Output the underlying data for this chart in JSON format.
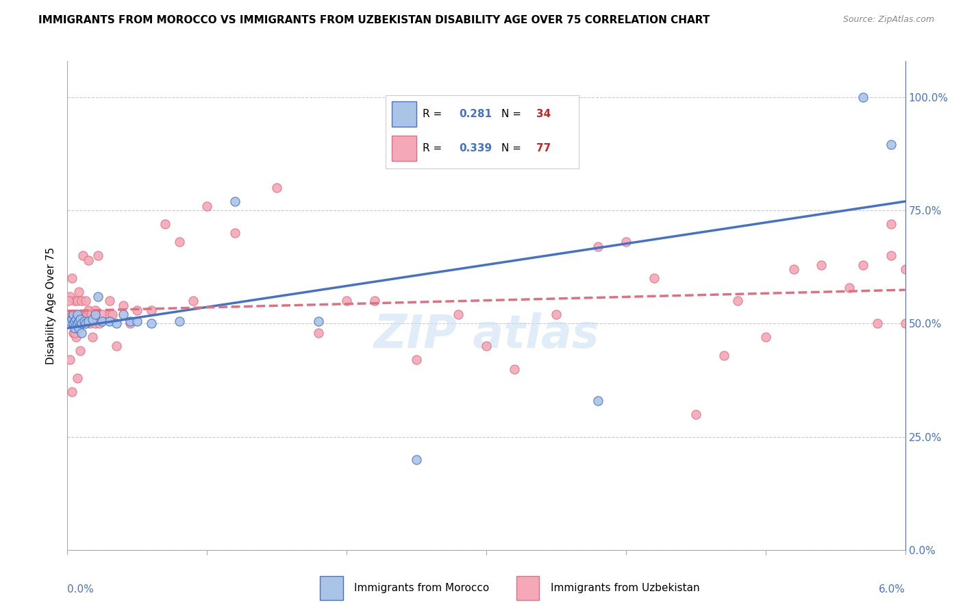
{
  "title": "IMMIGRANTS FROM MOROCCO VS IMMIGRANTS FROM UZBEKISTAN DISABILITY AGE OVER 75 CORRELATION CHART",
  "source": "Source: ZipAtlas.com",
  "ylabel": "Disability Age Over 75",
  "right_yaxis_labels": [
    "0.0%",
    "25.0%",
    "50.0%",
    "75.0%",
    "100.0%"
  ],
  "morocco_R": "0.281",
  "morocco_N": "34",
  "uzbekistan_R": "0.339",
  "uzbekistan_N": "77",
  "morocco_color": "#aac4e8",
  "uzbekistan_color": "#f4a8b8",
  "morocco_line_color": "#4472c4",
  "uzbekistan_line_color": "#e07080",
  "xlim_min": 0.0,
  "xlim_max": 0.06,
  "ylim_min": 0.0,
  "ylim_max": 1.08,
  "morocco_x": [
    0.0002,
    0.0003,
    0.0004,
    0.0004,
    0.0005,
    0.0005,
    0.0006,
    0.0007,
    0.0007,
    0.0008,
    0.0008,
    0.0009,
    0.001,
    0.001,
    0.0012,
    0.0013,
    0.0015,
    0.0018,
    0.002,
    0.0022,
    0.0025,
    0.003,
    0.0035,
    0.004,
    0.0045,
    0.005,
    0.006,
    0.008,
    0.012,
    0.018,
    0.025,
    0.038,
    0.057,
    0.059
  ],
  "morocco_y": [
    0.505,
    0.51,
    0.5,
    0.52,
    0.505,
    0.49,
    0.51,
    0.5,
    0.52,
    0.505,
    0.49,
    0.51,
    0.5,
    0.48,
    0.505,
    0.5,
    0.505,
    0.51,
    0.52,
    0.56,
    0.505,
    0.505,
    0.5,
    0.52,
    0.505,
    0.505,
    0.5,
    0.505,
    0.77,
    0.505,
    0.2,
    0.33,
    1.0,
    0.895
  ],
  "uzbekistan_x": [
    0.0001,
    0.0002,
    0.0002,
    0.0003,
    0.0003,
    0.0004,
    0.0004,
    0.0005,
    0.0005,
    0.0006,
    0.0006,
    0.0007,
    0.0007,
    0.0008,
    0.0008,
    0.0009,
    0.001,
    0.001,
    0.0011,
    0.0012,
    0.0013,
    0.0013,
    0.0014,
    0.0015,
    0.0015,
    0.0016,
    0.0017,
    0.0018,
    0.002,
    0.002,
    0.0022,
    0.0023,
    0.0025,
    0.003,
    0.003,
    0.0032,
    0.0035,
    0.004,
    0.0045,
    0.005,
    0.006,
    0.007,
    0.008,
    0.009,
    0.01,
    0.012,
    0.015,
    0.018,
    0.02,
    0.022,
    0.025,
    0.028,
    0.03,
    0.032,
    0.035,
    0.038,
    0.04,
    0.042,
    0.045,
    0.047,
    0.048,
    0.05,
    0.052,
    0.054,
    0.056,
    0.057,
    0.058,
    0.059,
    0.059,
    0.06,
    0.06,
    0.0001,
    0.0002,
    0.0003,
    0.0005,
    0.0007,
    0.0009
  ],
  "uzbekistan_y": [
    0.52,
    0.56,
    0.5,
    0.6,
    0.52,
    0.52,
    0.48,
    0.55,
    0.5,
    0.52,
    0.47,
    0.55,
    0.52,
    0.5,
    0.57,
    0.52,
    0.55,
    0.5,
    0.65,
    0.52,
    0.55,
    0.5,
    0.52,
    0.53,
    0.64,
    0.5,
    0.52,
    0.47,
    0.53,
    0.5,
    0.65,
    0.5,
    0.52,
    0.55,
    0.52,
    0.52,
    0.45,
    0.54,
    0.5,
    0.53,
    0.53,
    0.72,
    0.68,
    0.55,
    0.76,
    0.7,
    0.8,
    0.48,
    0.55,
    0.55,
    0.42,
    0.52,
    0.45,
    0.4,
    0.52,
    0.67,
    0.68,
    0.6,
    0.3,
    0.43,
    0.55,
    0.47,
    0.62,
    0.63,
    0.58,
    0.63,
    0.5,
    0.65,
    0.72,
    0.5,
    0.62,
    0.55,
    0.42,
    0.35,
    0.48,
    0.38,
    0.44
  ]
}
